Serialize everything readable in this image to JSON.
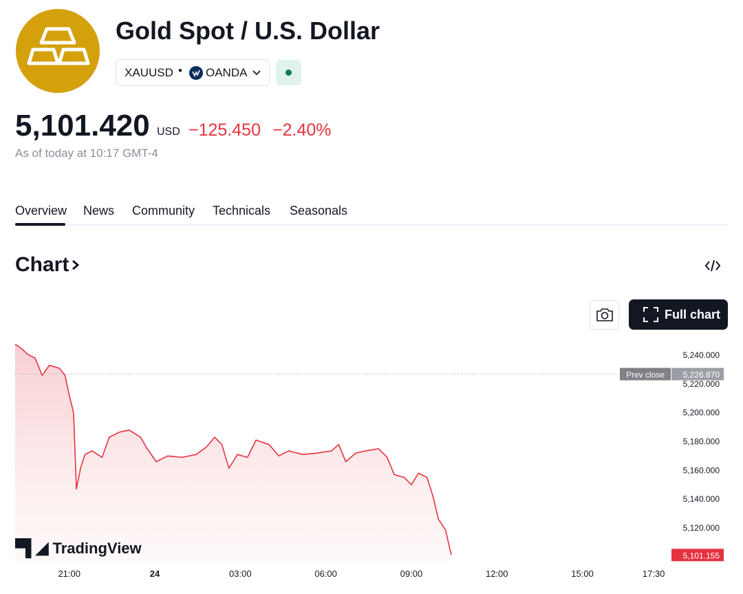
{
  "header": {
    "title": "Gold Spot / U.S. Dollar",
    "symbol": "XAUUSD",
    "exchange": "OANDA",
    "price": "5,101.420",
    "currency": "USD",
    "change": "−125.450",
    "change_percent": "−2.40%",
    "timestamp": "As of today at 10:17 GMT-4"
  },
  "tabs": [
    "Overview",
    "News",
    "Community",
    "Technicals",
    "Seasonals"
  ],
  "section_title": "Chart",
  "full_chart_button": "Full chart",
  "watermark": "TradingView",
  "chart_data": {
    "type": "line",
    "color": "#e5323f",
    "grid": false,
    "x": [
      19.1,
      19.3,
      19.55,
      19.8,
      20.05,
      20.3,
      20.65,
      20.85,
      21.0,
      21.15,
      21.25,
      21.4,
      21.55,
      21.8,
      22.15,
      22.4,
      22.75,
      23.1,
      23.5,
      23.7,
      24.05,
      24.45,
      24.95,
      25.45,
      25.8,
      26.1,
      26.35,
      26.6,
      26.9,
      27.25,
      27.55,
      28.0,
      28.35,
      28.7,
      29.2,
      29.7,
      30.2,
      30.45,
      30.7,
      31.05,
      31.4,
      31.85,
      32.15,
      32.4,
      32.75,
      33.0,
      33.25,
      33.55,
      33.75,
      33.95,
      34.2,
      34.4
    ],
    "values": [
      5247.6,
      5245,
      5240.5,
      5238,
      5226,
      5233,
      5231,
      5226,
      5212,
      5200,
      5147,
      5162,
      5171,
      5173.5,
      5169,
      5183,
      5186.5,
      5188,
      5183,
      5176,
      5166,
      5170,
      5169,
      5171,
      5176,
      5183,
      5178,
      5161.5,
      5171,
      5169,
      5181,
      5178,
      5170,
      5173.5,
      5171,
      5172,
      5173.5,
      5178,
      5166,
      5172,
      5173.5,
      5175,
      5169,
      5157,
      5155,
      5150,
      5158,
      5155,
      5142.5,
      5126,
      5118.5,
      5101.155
    ],
    "xlim": [
      19.1,
      42.1
    ],
    "xticks": [
      {
        "value": 21,
        "label": "21:00"
      },
      {
        "value": 24,
        "label": "24"
      },
      {
        "value": 27,
        "label": "03:00"
      },
      {
        "value": 30,
        "label": "06:00"
      },
      {
        "value": 33,
        "label": "09:00"
      },
      {
        "value": 36,
        "label": "12:00"
      },
      {
        "value": 39,
        "label": "15:00"
      },
      {
        "value": 41.5,
        "label": "17:30"
      }
    ],
    "ylim": [
      5097,
      5252
    ],
    "yticks": [
      {
        "value": 5120,
        "label": "5,120.000"
      },
      {
        "value": 5140,
        "label": "5,140.000"
      },
      {
        "value": 5160,
        "label": "5,160.000"
      },
      {
        "value": 5180,
        "label": "5,180.000"
      },
      {
        "value": 5200,
        "label": "5,200.000"
      },
      {
        "value": 5220,
        "label": "5,220.000"
      },
      {
        "value": 5240,
        "label": "5,240.000"
      }
    ],
    "prev_close": {
      "value": 5226.87,
      "label": "5,226.870",
      "name": "Prev close"
    },
    "last_price": {
      "value": 5101.155,
      "label": "5,101.155"
    }
  }
}
